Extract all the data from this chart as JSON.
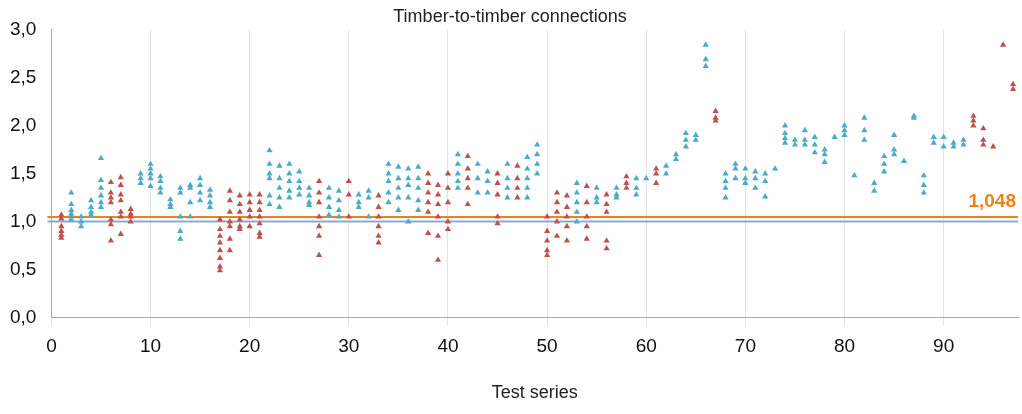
{
  "chart_data": {
    "type": "scatter",
    "title": "Timber-to-timber connections",
    "xlabel": "Test series",
    "marker": "triangle",
    "grid": "x",
    "xlim": [
      0,
      97.5
    ],
    "xticks": [
      0,
      10,
      20,
      30,
      40,
      50,
      60,
      70,
      80,
      90
    ],
    "ylim": [
      0,
      3
    ],
    "yticks": [
      {
        "value": 0,
        "label": "0,0"
      },
      {
        "value": 0.5,
        "label": "0,5"
      },
      {
        "value": 1,
        "label": "1,0"
      },
      {
        "value": 1.5,
        "label": "1,5"
      },
      {
        "value": 2,
        "label": "2,0"
      },
      {
        "value": 2.5,
        "label": "2,5"
      },
      {
        "value": 3,
        "label": "3,0"
      }
    ],
    "ref_lines": [
      {
        "axis": "y",
        "value": 1,
        "color": "#8fa9c8"
      },
      {
        "axis": "y",
        "value": 1.048,
        "label": "1,048",
        "color": "#f07f1e"
      }
    ],
    "series": [
      {
        "color": "#4bacc6",
        "x": [
          2,
          2,
          2,
          2,
          2,
          2,
          3,
          3,
          3,
          4,
          4,
          4,
          4,
          5,
          5,
          5,
          5,
          5,
          5,
          9,
          9,
          9,
          10,
          10,
          10,
          10,
          10,
          11,
          11,
          11,
          11,
          12,
          12,
          12,
          13,
          13,
          13,
          13,
          13,
          14,
          14,
          14,
          14,
          15,
          15,
          15,
          15,
          16,
          16,
          16,
          16,
          22,
          22,
          22,
          22,
          22,
          22,
          23,
          23,
          23,
          23,
          23,
          24,
          24,
          24,
          24,
          24,
          25,
          25,
          25,
          25,
          26,
          26,
          26,
          26,
          28,
          28,
          28,
          28,
          29,
          29,
          29,
          29,
          31,
          31,
          31,
          32,
          32,
          32,
          34,
          34,
          34,
          34,
          34,
          35,
          35,
          35,
          35,
          35,
          36,
          36,
          36,
          36,
          36,
          37,
          37,
          37,
          37,
          37,
          41,
          41,
          41,
          41,
          41,
          43,
          43,
          43,
          44,
          44,
          44,
          46,
          46,
          46,
          46,
          48,
          48,
          48,
          48,
          48,
          49,
          49,
          49,
          49,
          53,
          53,
          53,
          53,
          53,
          55,
          55,
          55,
          57,
          57,
          57,
          59,
          59,
          59,
          60,
          62,
          62,
          63,
          63,
          64,
          64,
          64,
          65,
          65,
          66,
          66,
          66,
          68,
          68,
          68,
          68,
          69,
          69,
          69,
          70,
          70,
          70,
          71,
          71,
          71,
          72,
          72,
          72,
          73,
          74,
          74,
          74,
          74,
          75,
          75,
          76,
          76,
          76,
          77,
          77,
          77,
          78,
          78,
          78,
          79,
          80,
          80,
          80,
          81,
          82,
          82,
          82,
          83,
          83,
          84,
          84,
          84,
          85,
          85,
          85,
          86,
          87,
          87,
          88,
          88,
          88,
          89,
          89,
          90,
          90,
          91,
          91,
          92,
          92
        ],
        "values": [
          1.3,
          1.18,
          1.12,
          1.08,
          1.05,
          1.02,
          1.05,
          1.0,
          0.95,
          1.22,
          1.15,
          1.1,
          1.07,
          1.66,
          1.43,
          1.35,
          1.27,
          1.2,
          1.15,
          1.5,
          1.45,
          1.4,
          1.6,
          1.55,
          1.5,
          1.45,
          1.37,
          1.47,
          1.42,
          1.35,
          1.3,
          1.23,
          1.18,
          1.15,
          1.35,
          1.3,
          1.05,
          0.9,
          0.82,
          1.38,
          1.35,
          1.2,
          1.05,
          1.45,
          1.38,
          1.3,
          1.22,
          1.33,
          1.27,
          1.2,
          1.15,
          1.74,
          1.6,
          1.5,
          1.45,
          1.27,
          1.18,
          1.58,
          1.45,
          1.35,
          1.25,
          1.15,
          1.6,
          1.5,
          1.42,
          1.32,
          1.25,
          1.52,
          1.42,
          1.35,
          1.28,
          1.35,
          1.27,
          1.2,
          1.17,
          1.35,
          1.25,
          1.15,
          1.07,
          1.32,
          1.22,
          1.12,
          1.05,
          1.28,
          1.2,
          1.15,
          1.32,
          1.25,
          1.05,
          1.6,
          1.5,
          1.42,
          1.3,
          1.2,
          1.57,
          1.45,
          1.35,
          1.25,
          1.12,
          1.55,
          1.45,
          1.38,
          1.25,
          1.0,
          1.57,
          1.45,
          1.35,
          1.22,
          1.12,
          1.7,
          1.6,
          1.5,
          1.42,
          1.35,
          1.6,
          1.45,
          1.3,
          1.52,
          1.42,
          1.3,
          1.6,
          1.45,
          1.35,
          1.25,
          1.67,
          1.55,
          1.45,
          1.35,
          1.25,
          1.8,
          1.7,
          1.6,
          1.5,
          1.4,
          1.3,
          1.2,
          1.1,
          1.0,
          1.35,
          1.25,
          1.2,
          1.35,
          1.28,
          1.25,
          1.45,
          1.35,
          1.28,
          1.45,
          1.58,
          1.5,
          1.7,
          1.65,
          1.92,
          1.85,
          1.78,
          1.9,
          1.85,
          2.84,
          2.69,
          2.62,
          1.5,
          1.42,
          1.35,
          1.25,
          1.6,
          1.55,
          1.45,
          1.55,
          1.45,
          1.4,
          1.52,
          1.45,
          1.35,
          1.5,
          1.42,
          1.26,
          1.55,
          2.0,
          1.92,
          1.87,
          1.82,
          1.85,
          1.8,
          1.95,
          1.85,
          1.8,
          1.88,
          1.8,
          1.72,
          1.75,
          1.7,
          1.62,
          1.88,
          2.0,
          1.95,
          1.9,
          1.48,
          2.08,
          1.95,
          1.85,
          1.4,
          1.32,
          1.68,
          1.6,
          1.52,
          1.9,
          1.75,
          1.7,
          1.63,
          2.1,
          2.08,
          1.48,
          1.38,
          1.3,
          1.88,
          1.82,
          1.88,
          1.78,
          1.82,
          1.78,
          1.85,
          1.8
        ]
      },
      {
        "color": "#c0504d",
        "x": [
          1,
          1,
          1,
          1,
          1,
          1,
          6,
          6,
          6,
          6,
          6,
          6,
          6,
          7,
          7,
          7,
          7,
          7,
          7,
          7,
          8,
          8,
          8,
          8,
          17,
          17,
          17,
          17,
          17,
          17,
          17,
          17,
          18,
          18,
          18,
          18,
          18,
          18,
          18,
          19,
          19,
          19,
          19,
          19,
          19,
          20,
          20,
          20,
          20,
          20,
          21,
          21,
          21,
          21,
          21,
          21,
          21,
          27,
          27,
          27,
          27,
          27,
          27,
          27,
          30,
          30,
          30,
          33,
          33,
          33,
          33,
          33,
          33,
          38,
          38,
          38,
          38,
          38,
          38,
          39,
          39,
          39,
          39,
          39,
          39,
          40,
          40,
          40,
          40,
          40,
          42,
          42,
          42,
          42,
          42,
          45,
          45,
          45,
          45,
          45,
          47,
          47,
          47,
          47,
          50,
          50,
          50,
          50,
          50,
          51,
          51,
          51,
          51,
          51,
          52,
          52,
          52,
          52,
          52,
          54,
          54,
          54,
          54,
          54,
          56,
          56,
          56,
          56,
          56,
          58,
          58,
          58,
          61,
          61,
          61,
          67,
          67,
          67,
          93,
          93,
          93,
          94,
          94,
          94,
          95,
          96,
          97,
          97
        ],
        "values": [
          1.07,
          1.03,
          0.95,
          0.9,
          0.86,
          0.83,
          1.41,
          1.3,
          1.25,
          1.2,
          1.02,
          0.97,
          0.8,
          1.46,
          1.38,
          1.28,
          1.22,
          1.1,
          1.05,
          0.87,
          1.13,
          1.08,
          1.05,
          1.0,
          1.02,
          0.92,
          0.85,
          0.78,
          0.7,
          0.62,
          0.53,
          0.49,
          1.32,
          1.22,
          1.1,
          1.0,
          0.95,
          0.82,
          0.7,
          1.27,
          1.18,
          1.1,
          1.02,
          0.95,
          0.92,
          1.28,
          1.2,
          1.12,
          1.05,
          0.95,
          1.28,
          1.2,
          1.12,
          1.05,
          0.98,
          0.88,
          0.84,
          1.42,
          1.3,
          1.2,
          1.05,
          0.95,
          0.85,
          0.65,
          1.42,
          1.28,
          1.05,
          1.27,
          1.15,
          1.05,
          0.95,
          0.85,
          0.78,
          1.5,
          1.4,
          1.3,
          1.2,
          1.1,
          0.88,
          1.38,
          1.28,
          1.18,
          1.05,
          0.85,
          0.6,
          1.5,
          1.35,
          1.2,
          1.0,
          0.92,
          1.68,
          1.55,
          1.45,
          1.35,
          1.18,
          1.5,
          1.4,
          1.28,
          1.05,
          0.98,
          1.58,
          1.45,
          1.35,
          1.25,
          1.05,
          0.9,
          0.8,
          0.7,
          0.65,
          1.3,
          1.2,
          1.1,
          1.0,
          0.85,
          1.27,
          1.15,
          1.05,
          0.95,
          0.8,
          1.37,
          1.2,
          1.05,
          0.95,
          0.82,
          1.28,
          1.18,
          1.1,
          0.8,
          0.72,
          1.47,
          1.4,
          1.35,
          1.55,
          1.5,
          1.4,
          2.15,
          2.08,
          2.05,
          2.1,
          2.05,
          2.0,
          1.97,
          1.85,
          1.8,
          1.78,
          2.84,
          2.43,
          2.38
        ]
      }
    ]
  }
}
